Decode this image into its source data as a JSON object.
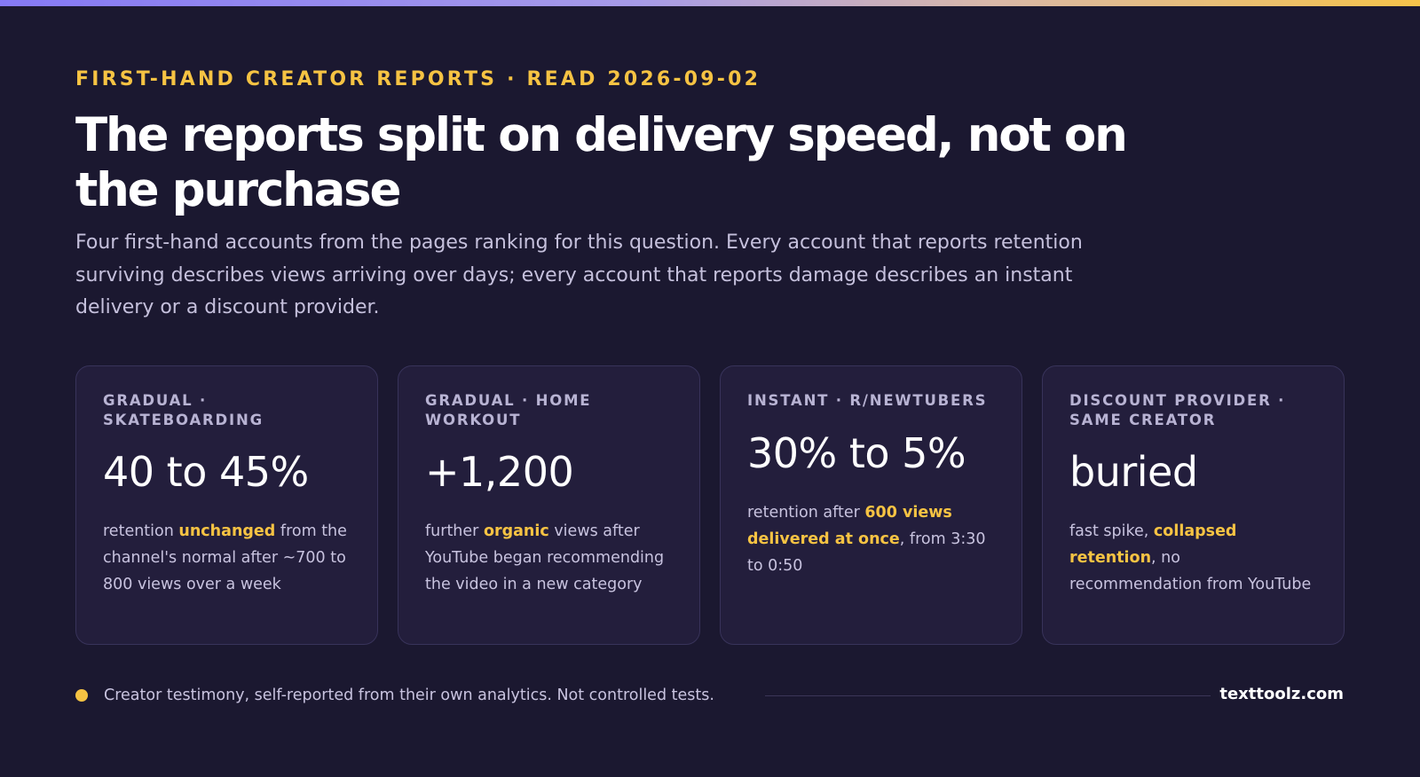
{
  "header": {
    "eyebrow": "FIRST-HAND CREATOR REPORTS · READ 2026-09-02",
    "title": "The reports split on delivery speed, not on the purchase",
    "lede": "Four first-hand accounts from the pages ranking for this question. Every account that reports retention surviving describes views arriving over days; every account that reports damage describes an instant delivery or a discount provider."
  },
  "colors": {
    "background": "#1b1830",
    "card": "#231e3c",
    "accent": "#f6c343",
    "gradient_start": "#8579f5",
    "gradient_end": "#f6c34a"
  },
  "cards": [
    {
      "tag": "GRADUAL · SKATEBOARDING",
      "value": "40 to 45%",
      "desc": [
        {
          "text": "retention ",
          "hl": false
        },
        {
          "text": "unchanged",
          "hl": true
        },
        {
          "text": " from the channel's normal after ~700 to 800 views over a week",
          "hl": false
        }
      ]
    },
    {
      "tag": "GRADUAL · HOME WORKOUT",
      "value": "+1,200",
      "desc": [
        {
          "text": "further ",
          "hl": false
        },
        {
          "text": "organic",
          "hl": true
        },
        {
          "text": " views after YouTube began recommending the video in a new category",
          "hl": false
        }
      ]
    },
    {
      "tag": "INSTANT · R/NEWTUBERS",
      "value": "30% to 5%",
      "desc": [
        {
          "text": "retention after ",
          "hl": false
        },
        {
          "text": "600 views delivered at once",
          "hl": true
        },
        {
          "text": ", from 3:30 to 0:50",
          "hl": false
        }
      ]
    },
    {
      "tag": "DISCOUNT PROVIDER · SAME CREATOR",
      "value": "buried",
      "desc": [
        {
          "text": "fast spike, ",
          "hl": false
        },
        {
          "text": "collapsed retention",
          "hl": true
        },
        {
          "text": ", no recommendation from YouTube",
          "hl": false
        }
      ]
    }
  ],
  "footer": {
    "note": "Creator testimony, self-reported from their own analytics. Not controlled tests.",
    "brand": "texttoolz.com"
  }
}
